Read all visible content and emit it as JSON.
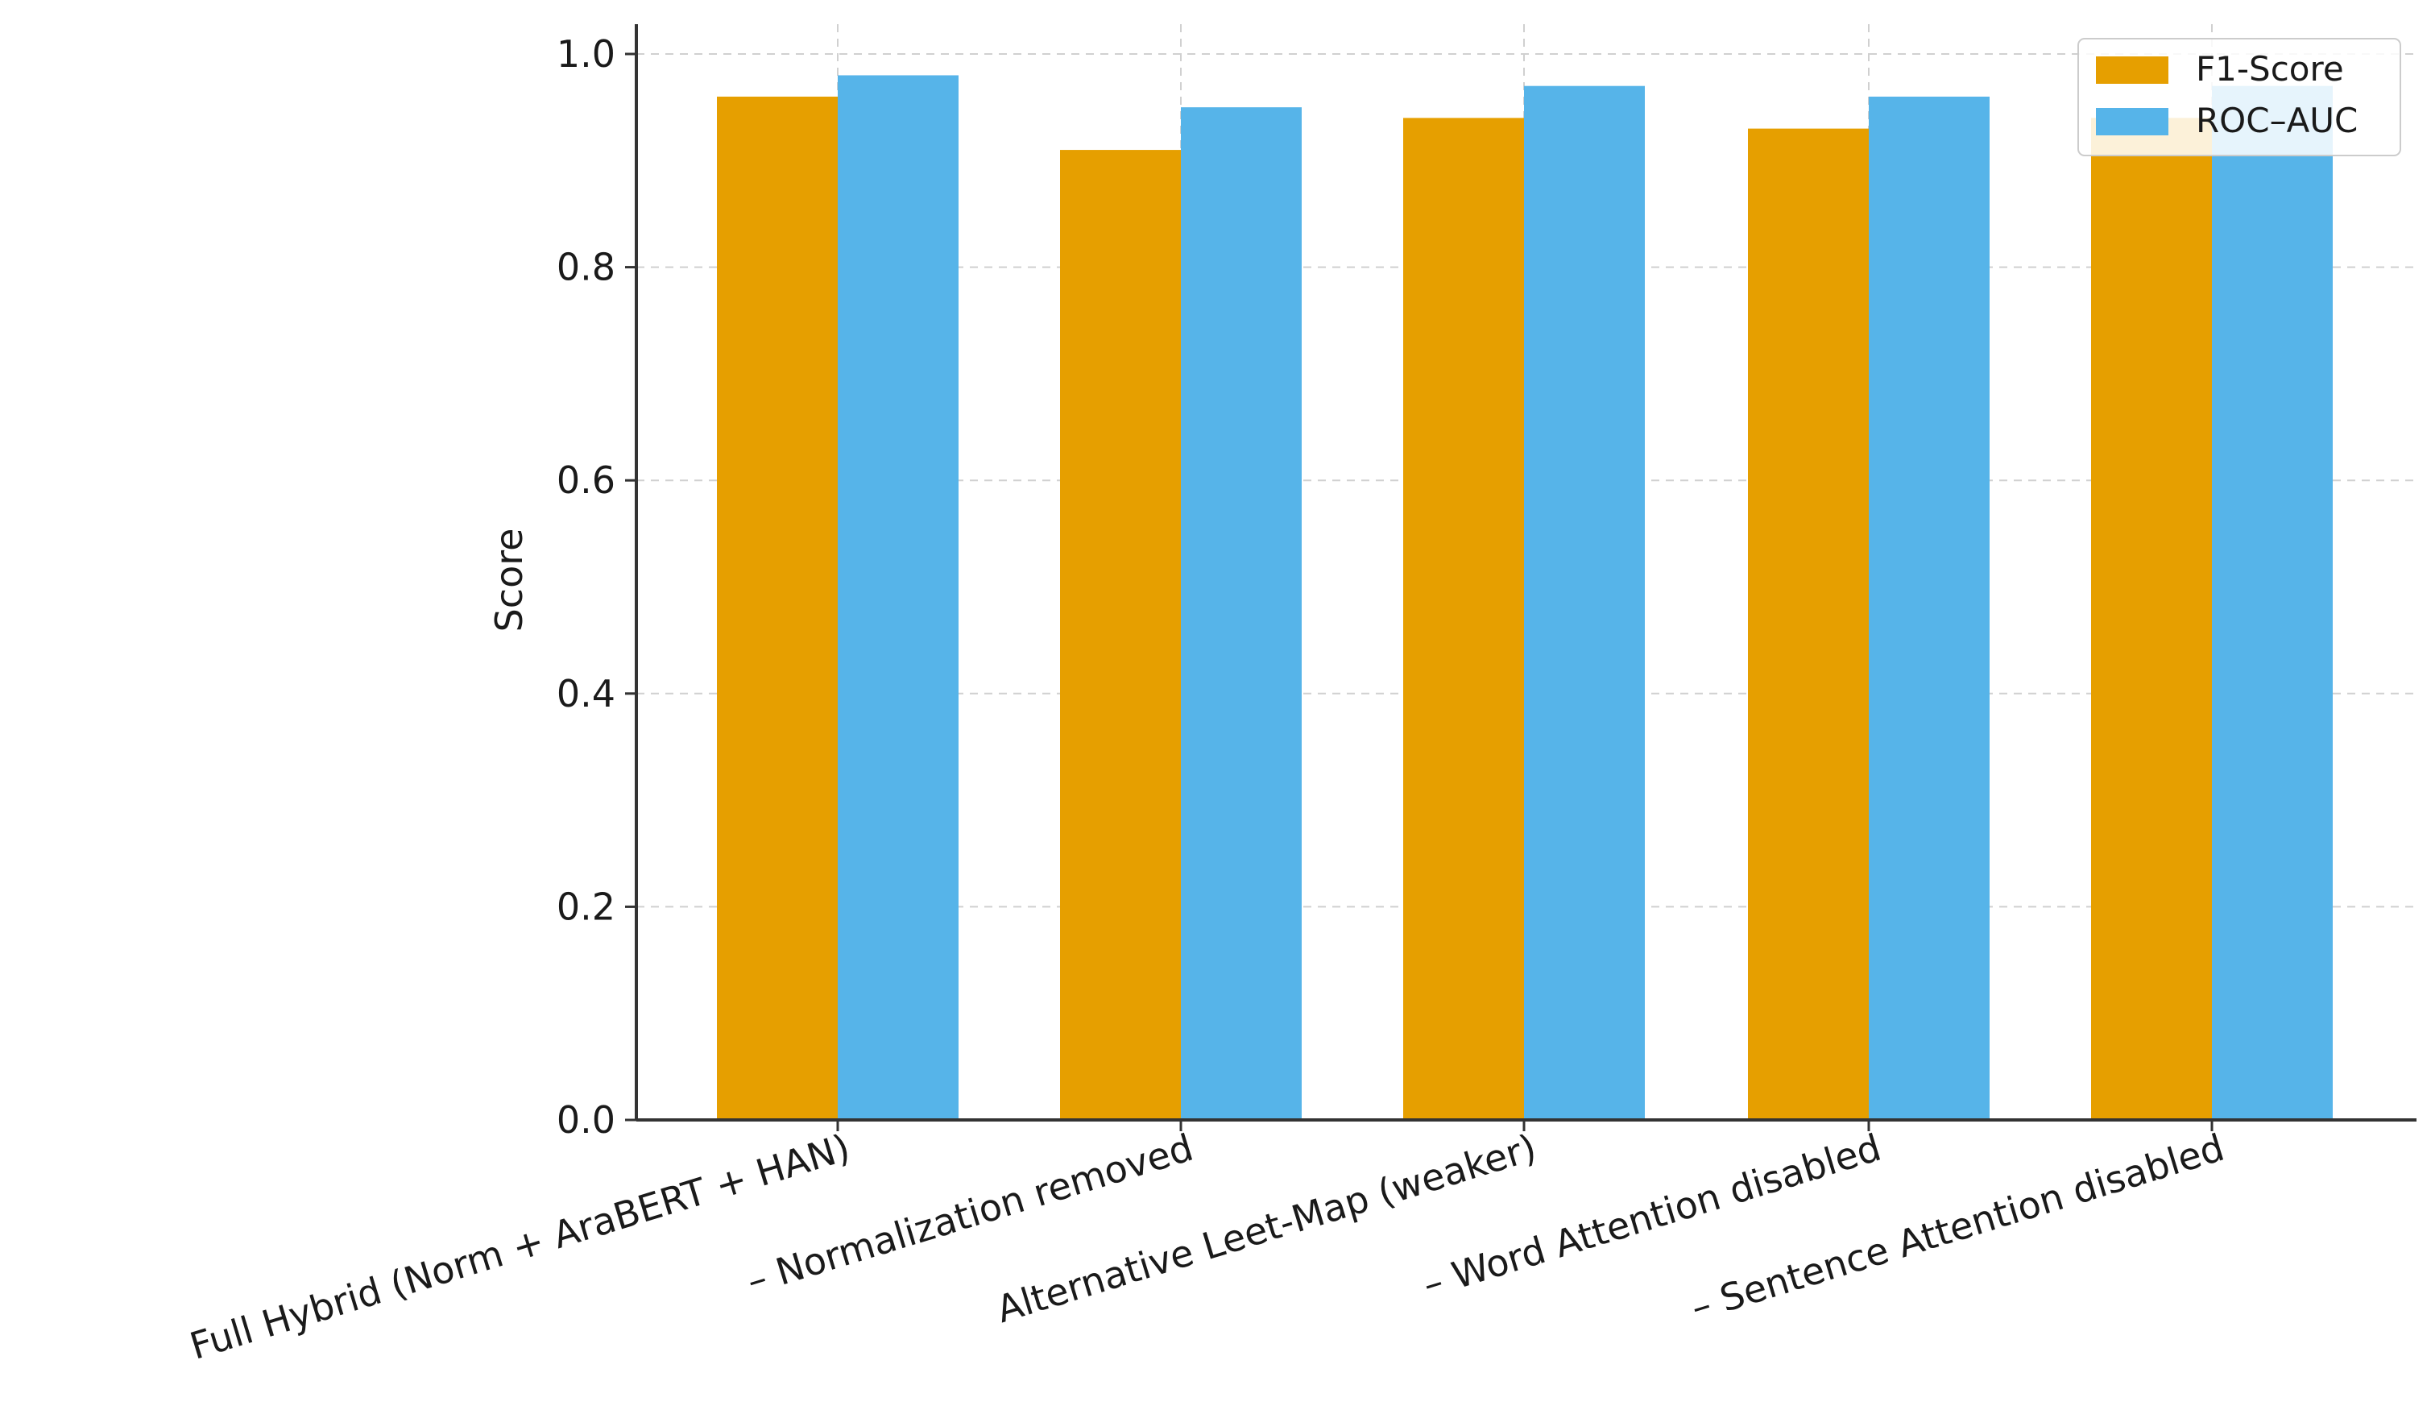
{
  "chart_data": {
    "type": "bar",
    "title": "",
    "xlabel": "",
    "ylabel": "Score",
    "ylim": [
      0,
      1.0
    ],
    "yticks": [
      "0.0",
      "0.2",
      "0.4",
      "0.6",
      "0.8",
      "1.0"
    ],
    "grid": true,
    "legend_position": "top-right",
    "categories": [
      "Full Hybrid (Norm + AraBERT + HAN)",
      "– Normalization removed",
      "Alternative Leet-Map (weaker)",
      "– Word Attention disabled",
      "– Sentence Attention disabled"
    ],
    "series": [
      {
        "name": "F1-Score",
        "color": "#E69F00",
        "values": [
          0.96,
          0.91,
          0.94,
          0.93,
          0.94
        ]
      },
      {
        "name": "ROC–AUC",
        "color": "#56B4E9",
        "values": [
          0.98,
          0.95,
          0.97,
          0.96,
          0.97
        ]
      }
    ]
  }
}
